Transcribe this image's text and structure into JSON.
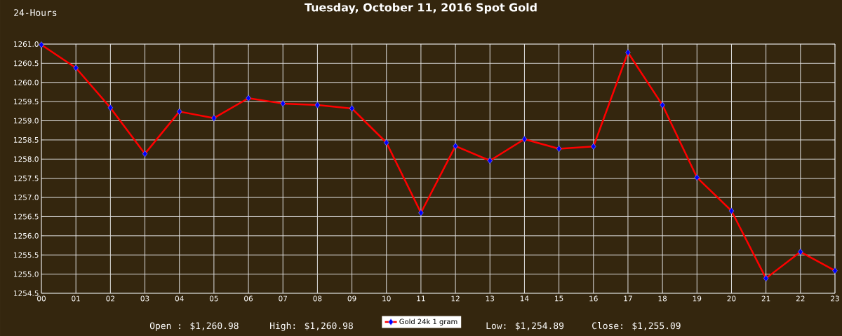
{
  "chart_data": {
    "type": "line",
    "title": "Tuesday, October 11, 2016 Spot Gold",
    "annotations": [
      "24-Hours",
      "Open : $1,260.98",
      "High: $1,260.98",
      "Low: $1,254.89",
      "Close: $1,255.09"
    ],
    "categories": [
      "00",
      "01",
      "02",
      "03",
      "04",
      "05",
      "06",
      "07",
      "08",
      "09",
      "10",
      "11",
      "12",
      "13",
      "14",
      "15",
      "16",
      "17",
      "18",
      "19",
      "20",
      "21",
      "22",
      "23"
    ],
    "series": [
      {
        "name": "Gold 24k 1 gram",
        "color": "#ff0000",
        "values": [
          1260.98,
          1260.38,
          1259.34,
          1258.14,
          1259.24,
          1259.07,
          1259.59,
          1259.45,
          1259.41,
          1259.32,
          1258.43,
          1256.6,
          1258.34,
          1257.96,
          1258.52,
          1258.27,
          1258.33,
          1260.78,
          1259.41,
          1257.52,
          1256.65,
          1254.89,
          1255.58,
          1255.09
        ]
      }
    ],
    "ylim": [
      1254.5,
      1261.0
    ],
    "yticks": [
      {
        "value": 1254.5,
        "label": "1254.5"
      },
      {
        "value": 1255.0,
        "label": "1255.0"
      },
      {
        "value": 1255.5,
        "label": "1255.5"
      },
      {
        "value": 1256.0,
        "label": "1256.0"
      },
      {
        "value": 1256.5,
        "label": "1256.5"
      },
      {
        "value": 1257.0,
        "label": "1257.0"
      },
      {
        "value": 1257.5,
        "label": "1257.5"
      },
      {
        "value": 1258.0,
        "label": "1258.0"
      },
      {
        "value": 1258.5,
        "label": "1258.5"
      },
      {
        "value": 1259.0,
        "label": "1259.0"
      },
      {
        "value": 1259.5,
        "label": "1259.5"
      },
      {
        "value": 1260.0,
        "label": "1260.0"
      },
      {
        "value": 1260.5,
        "label": "1260.5"
      },
      {
        "value": 1261.0,
        "label": "1261.0"
      }
    ],
    "grid": true,
    "legend": "bottom",
    "marker": "diamond",
    "line_style": "solid"
  }
}
